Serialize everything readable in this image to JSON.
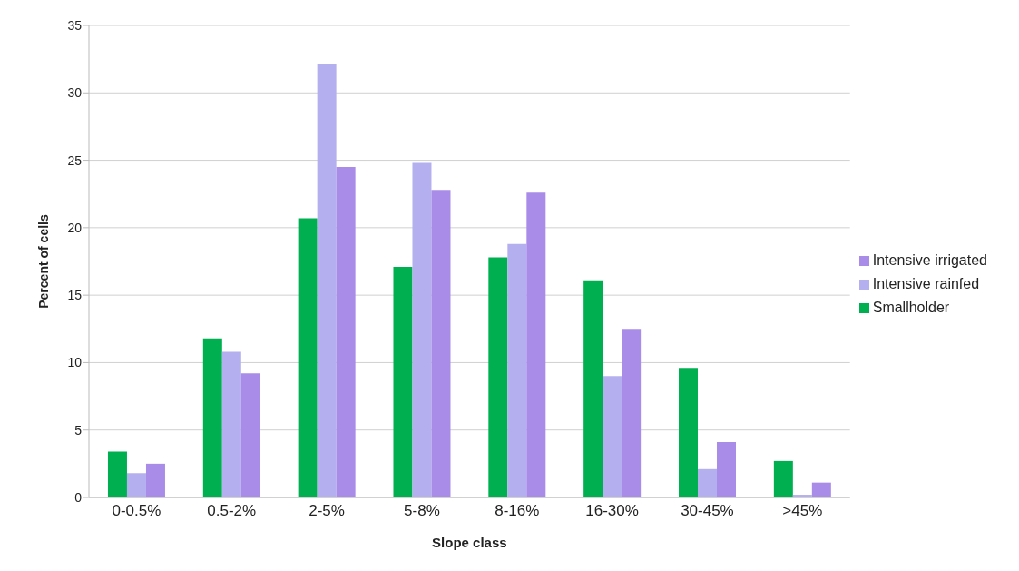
{
  "chart_data": {
    "type": "bar",
    "xlabel": "Slope class",
    "ylabel": "Percent of cells",
    "categories": [
      "0-0.5%",
      "0.5-2%",
      "2-5%",
      "5-8%",
      "8-16%",
      "16-30%",
      "30-45%",
      ">45%"
    ],
    "series": [
      {
        "name": "Smallholder",
        "color": "#00b050",
        "values": [
          3.4,
          11.8,
          20.7,
          17.1,
          17.8,
          16.1,
          9.6,
          2.7
        ]
      },
      {
        "name": "Intensive rainfed",
        "color": "#b4b0f0",
        "values": [
          1.8,
          10.8,
          32.1,
          24.8,
          18.8,
          9.0,
          2.1,
          0.2
        ]
      },
      {
        "name": "Intensive irrigated",
        "color": "#a98be8",
        "values": [
          2.5,
          9.2,
          24.5,
          22.8,
          22.6,
          12.5,
          4.1,
          1.1
        ]
      }
    ],
    "ylim": [
      0,
      35
    ],
    "yticks": [
      0,
      5,
      10,
      15,
      20,
      25,
      30,
      35
    ],
    "grid": "y",
    "legend": "right"
  }
}
